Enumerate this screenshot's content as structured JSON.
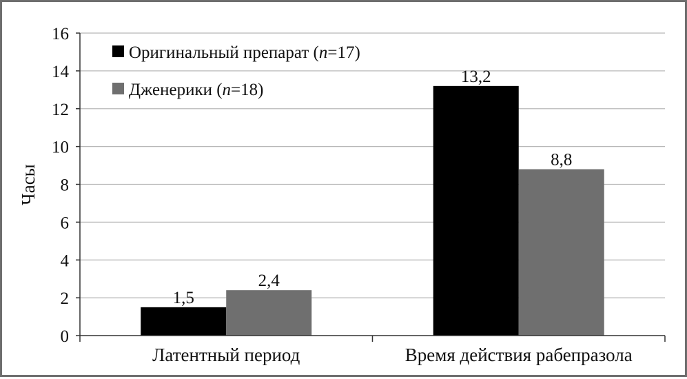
{
  "chart_data": {
    "type": "bar",
    "ylabel": "Часы",
    "xlabel": "",
    "ylim": [
      0,
      16
    ],
    "yticks": [
      0,
      2,
      4,
      6,
      8,
      10,
      12,
      14,
      16
    ],
    "grid": "horizontal",
    "legend_position": "top-left",
    "categories": [
      "Латентный период",
      "Время действия рабепразола"
    ],
    "series": [
      {
        "name": "Оригинальный препарат (n=17)",
        "name_prefix": "Оригинальный препарат (",
        "name_italic": "n",
        "name_suffix": "=17)",
        "color": "#000000",
        "values": [
          1.5,
          13.2
        ],
        "labels": [
          "1,5",
          "13,2"
        ]
      },
      {
        "name": "Дженерики (n=18)",
        "name_prefix": "Дженерики (",
        "name_italic": "n",
        "name_suffix": "=18)",
        "color": "#6f6f6f",
        "values": [
          2.4,
          8.8
        ],
        "labels": [
          "2,4",
          "8,8"
        ]
      }
    ]
  }
}
